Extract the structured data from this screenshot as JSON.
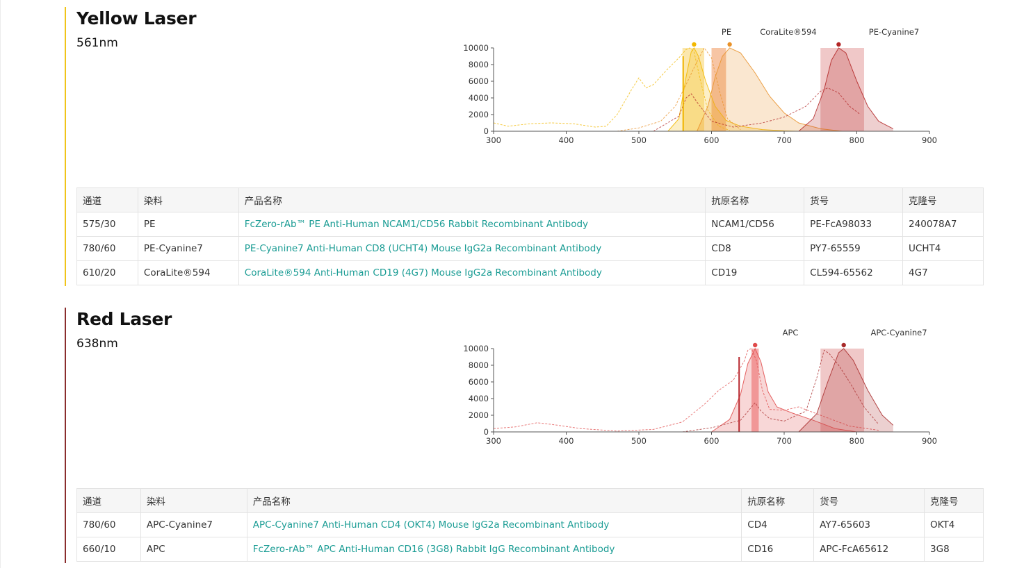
{
  "sections": [
    {
      "title": "Yellow Laser",
      "wavelength": "561nm",
      "accent_color": "#f0c419",
      "chart_data": {
        "type": "line",
        "xlim": [
          300,
          900
        ],
        "ylim": [
          0,
          10000
        ],
        "x_ticks": [
          "300",
          "400",
          "500",
          "600",
          "700",
          "800",
          "900"
        ],
        "y_ticks": [
          "0",
          "2000",
          "4000",
          "6000",
          "8000",
          "10000"
        ],
        "laser_line_nm": 561,
        "laser_color": "#f0b400",
        "dye_labels": [
          "PE",
          "CoraLite®594",
          "PE-Cyanine7"
        ],
        "filters": [
          {
            "name": "575/30",
            "range": [
              560,
              590
            ],
            "color": "#f7d36a"
          },
          {
            "name": "610/20",
            "range": [
              600,
              620
            ],
            "color": "#f0965a"
          },
          {
            "name": "780/60",
            "range": [
              750,
              810
            ],
            "color": "#e49a9a"
          }
        ],
        "series": [
          {
            "name": "PE",
            "color": "#f2b800",
            "emission": [
              [
                540,
                0
              ],
              [
                555,
                1500
              ],
              [
                565,
                6500
              ],
              [
                572,
                9500
              ],
              [
                576,
                10000
              ],
              [
                582,
                9000
              ],
              [
                592,
                6000
              ],
              [
                605,
                3000
              ],
              [
                620,
                1300
              ],
              [
                640,
                600
              ],
              [
                670,
                200
              ],
              [
                700,
                50
              ],
              [
                720,
                0
              ]
            ],
            "excitation": [
              [
                300,
                1000
              ],
              [
                320,
                600
              ],
              [
                350,
                900
              ],
              [
                380,
                1000
              ],
              [
                410,
                900
              ],
              [
                440,
                500
              ],
              [
                455,
                600
              ],
              [
                470,
                2000
              ],
              [
                490,
                5000
              ],
              [
                500,
                6400
              ],
              [
                510,
                5200
              ],
              [
                520,
                5600
              ],
              [
                540,
                7500
              ],
              [
                555,
                8800
              ],
              [
                565,
                9800
              ],
              [
                570,
                10000
              ],
              [
                576,
                9500
              ],
              [
                585,
                6000
              ],
              [
                595,
                2500
              ],
              [
                610,
                600
              ],
              [
                625,
                100
              ]
            ]
          },
          {
            "name": "CoraLite®594",
            "color": "#e9922a",
            "emission": [
              [
                580,
                0
              ],
              [
                595,
                3000
              ],
              [
                605,
                6500
              ],
              [
                615,
                9000
              ],
              [
                625,
                10000
              ],
              [
                640,
                9400
              ],
              [
                660,
                7000
              ],
              [
                680,
                4200
              ],
              [
                700,
                2200
              ],
              [
                720,
                1000
              ],
              [
                750,
                300
              ],
              [
                780,
                0
              ]
            ],
            "excitation": [
              [
                470,
                0
              ],
              [
                500,
                400
              ],
              [
                530,
                1200
              ],
              [
                550,
                3000
              ],
              [
                565,
                5600
              ],
              [
                578,
                8000
              ],
              [
                590,
                10000
              ],
              [
                600,
                8800
              ],
              [
                612,
                4500
              ],
              [
                622,
                1500
              ],
              [
                640,
                200
              ]
            ]
          },
          {
            "name": "PE-Cyanine7",
            "color": "#b22525",
            "emission": [
              [
                720,
                0
              ],
              [
                740,
                1500
              ],
              [
                755,
                5000
              ],
              [
                765,
                8500
              ],
              [
                775,
                10000
              ],
              [
                785,
                9400
              ],
              [
                800,
                6000
              ],
              [
                815,
                3000
              ],
              [
                830,
                1200
              ],
              [
                850,
                300
              ]
            ],
            "excitation": [
              [
                520,
                0
              ],
              [
                555,
                1800
              ],
              [
                565,
                4000
              ],
              [
                572,
                4500
              ],
              [
                580,
                3500
              ],
              [
                600,
                1200
              ],
              [
                630,
                500
              ],
              [
                670,
                1000
              ],
              [
                700,
                1700
              ],
              [
                730,
                3000
              ],
              [
                750,
                4800
              ],
              [
                760,
                5200
              ],
              [
                775,
                4600
              ],
              [
                790,
                3000
              ],
              [
                805,
                2000
              ]
            ]
          }
        ]
      },
      "table": {
        "headers": [
          "通道",
          "染料",
          "产品名称",
          "抗原名称",
          "货号",
          "克隆号"
        ],
        "rows": [
          [
            "575/30",
            "PE",
            "FcZero-rAb™ PE Anti-Human NCAM1/CD56 Rabbit Recombinant Antibody",
            "NCAM1/CD56",
            "PE-FcA98033",
            "240078A7"
          ],
          [
            "780/60",
            "PE-Cyanine7",
            "PE-Cyanine7 Anti-Human CD8 (UCHT4) Mouse IgG2a Recombinant Antibody",
            "CD8",
            "PY7-65559",
            "UCHT4"
          ],
          [
            "610/20",
            "CoraLite®594",
            "CoraLite®594 Anti-Human CD19 (4G7) Mouse IgG2a Recombinant Antibody",
            "CD19",
            "CL594-65562",
            "4G7"
          ]
        ]
      }
    },
    {
      "title": "Red Laser",
      "wavelength": "638nm",
      "accent_color": "#8a2e2e",
      "chart_data": {
        "type": "line",
        "xlim": [
          300,
          900
        ],
        "ylim": [
          0,
          10000
        ],
        "x_ticks": [
          "300",
          "400",
          "500",
          "600",
          "700",
          "800",
          "900"
        ],
        "y_ticks": [
          "0",
          "2000",
          "4000",
          "6000",
          "8000",
          "10000"
        ],
        "laser_line_nm": 638,
        "laser_color": "#b8282e",
        "dye_labels": [
          "APC",
          "APC-Cyanine7"
        ],
        "filters": [
          {
            "name": "660/10",
            "range": [
              655,
              665
            ],
            "color": "#ee6b6b"
          },
          {
            "name": "780/60",
            "range": [
              750,
              810
            ],
            "color": "#e49a9a"
          }
        ],
        "series": [
          {
            "name": "APC",
            "color": "#e04a4a",
            "emission": [
              [
                600,
                0
              ],
              [
                625,
                1500
              ],
              [
                640,
                4500
              ],
              [
                650,
                8200
              ],
              [
                660,
                10000
              ],
              [
                668,
                8400
              ],
              [
                678,
                4800
              ],
              [
                690,
                3000
              ],
              [
                710,
                2300
              ],
              [
                740,
                1400
              ],
              [
                770,
                400
              ],
              [
                800,
                0
              ]
            ],
            "excitation": [
              [
                300,
                400
              ],
              [
                330,
                600
              ],
              [
                360,
                1100
              ],
              [
                380,
                900
              ],
              [
                420,
                400
              ],
              [
                470,
                100
              ],
              [
                520,
                300
              ],
              [
                560,
                1200
              ],
              [
                590,
                3300
              ],
              [
                610,
                5000
              ],
              [
                630,
                6200
              ],
              [
                645,
                8500
              ],
              [
                650,
                9800
              ],
              [
                655,
                10000
              ],
              [
                662,
                8500
              ],
              [
                670,
                5000
              ],
              [
                680,
                2700
              ],
              [
                700,
                2600
              ],
              [
                720,
                3000
              ],
              [
                750,
                2000
              ],
              [
                790,
                700
              ],
              [
                830,
                200
              ]
            ]
          },
          {
            "name": "APC-Cyanine7",
            "color": "#a82a2a",
            "emission": [
              [
                720,
                0
              ],
              [
                745,
                2200
              ],
              [
                760,
                6000
              ],
              [
                775,
                9500
              ],
              [
                782,
                10000
              ],
              [
                795,
                8600
              ],
              [
                815,
                5000
              ],
              [
                835,
                2000
              ],
              [
                850,
                800
              ]
            ],
            "excitation": [
              [
                560,
                0
              ],
              [
                600,
                500
              ],
              [
                640,
                1400
              ],
              [
                660,
                3500
              ],
              [
                668,
                2500
              ],
              [
                680,
                1600
              ],
              [
                700,
                1300
              ],
              [
                730,
                2500
              ],
              [
                745,
                6500
              ],
              [
                755,
                9800
              ],
              [
                762,
                9400
              ],
              [
                775,
                8000
              ],
              [
                790,
                6000
              ],
              [
                810,
                3000
              ],
              [
                830,
                900
              ]
            ]
          }
        ]
      },
      "table": {
        "headers": [
          "通道",
          "染料",
          "产品名称",
          "抗原名称",
          "货号",
          "克隆号"
        ],
        "rows": [
          [
            "780/60",
            "APC-Cyanine7",
            "APC-Cyanine7 Anti-Human CD4 (OKT4) Mouse IgG2a Recombinant Antibody",
            "CD4",
            "AY7-65603",
            "OKT4"
          ],
          [
            "660/10",
            "APC",
            "FcZero-rAb™ APC Anti-Human CD16 (3G8) Rabbit IgG Recombinant Antibody",
            "CD16",
            "APC-FcA65612",
            "3G8"
          ]
        ]
      }
    }
  ]
}
